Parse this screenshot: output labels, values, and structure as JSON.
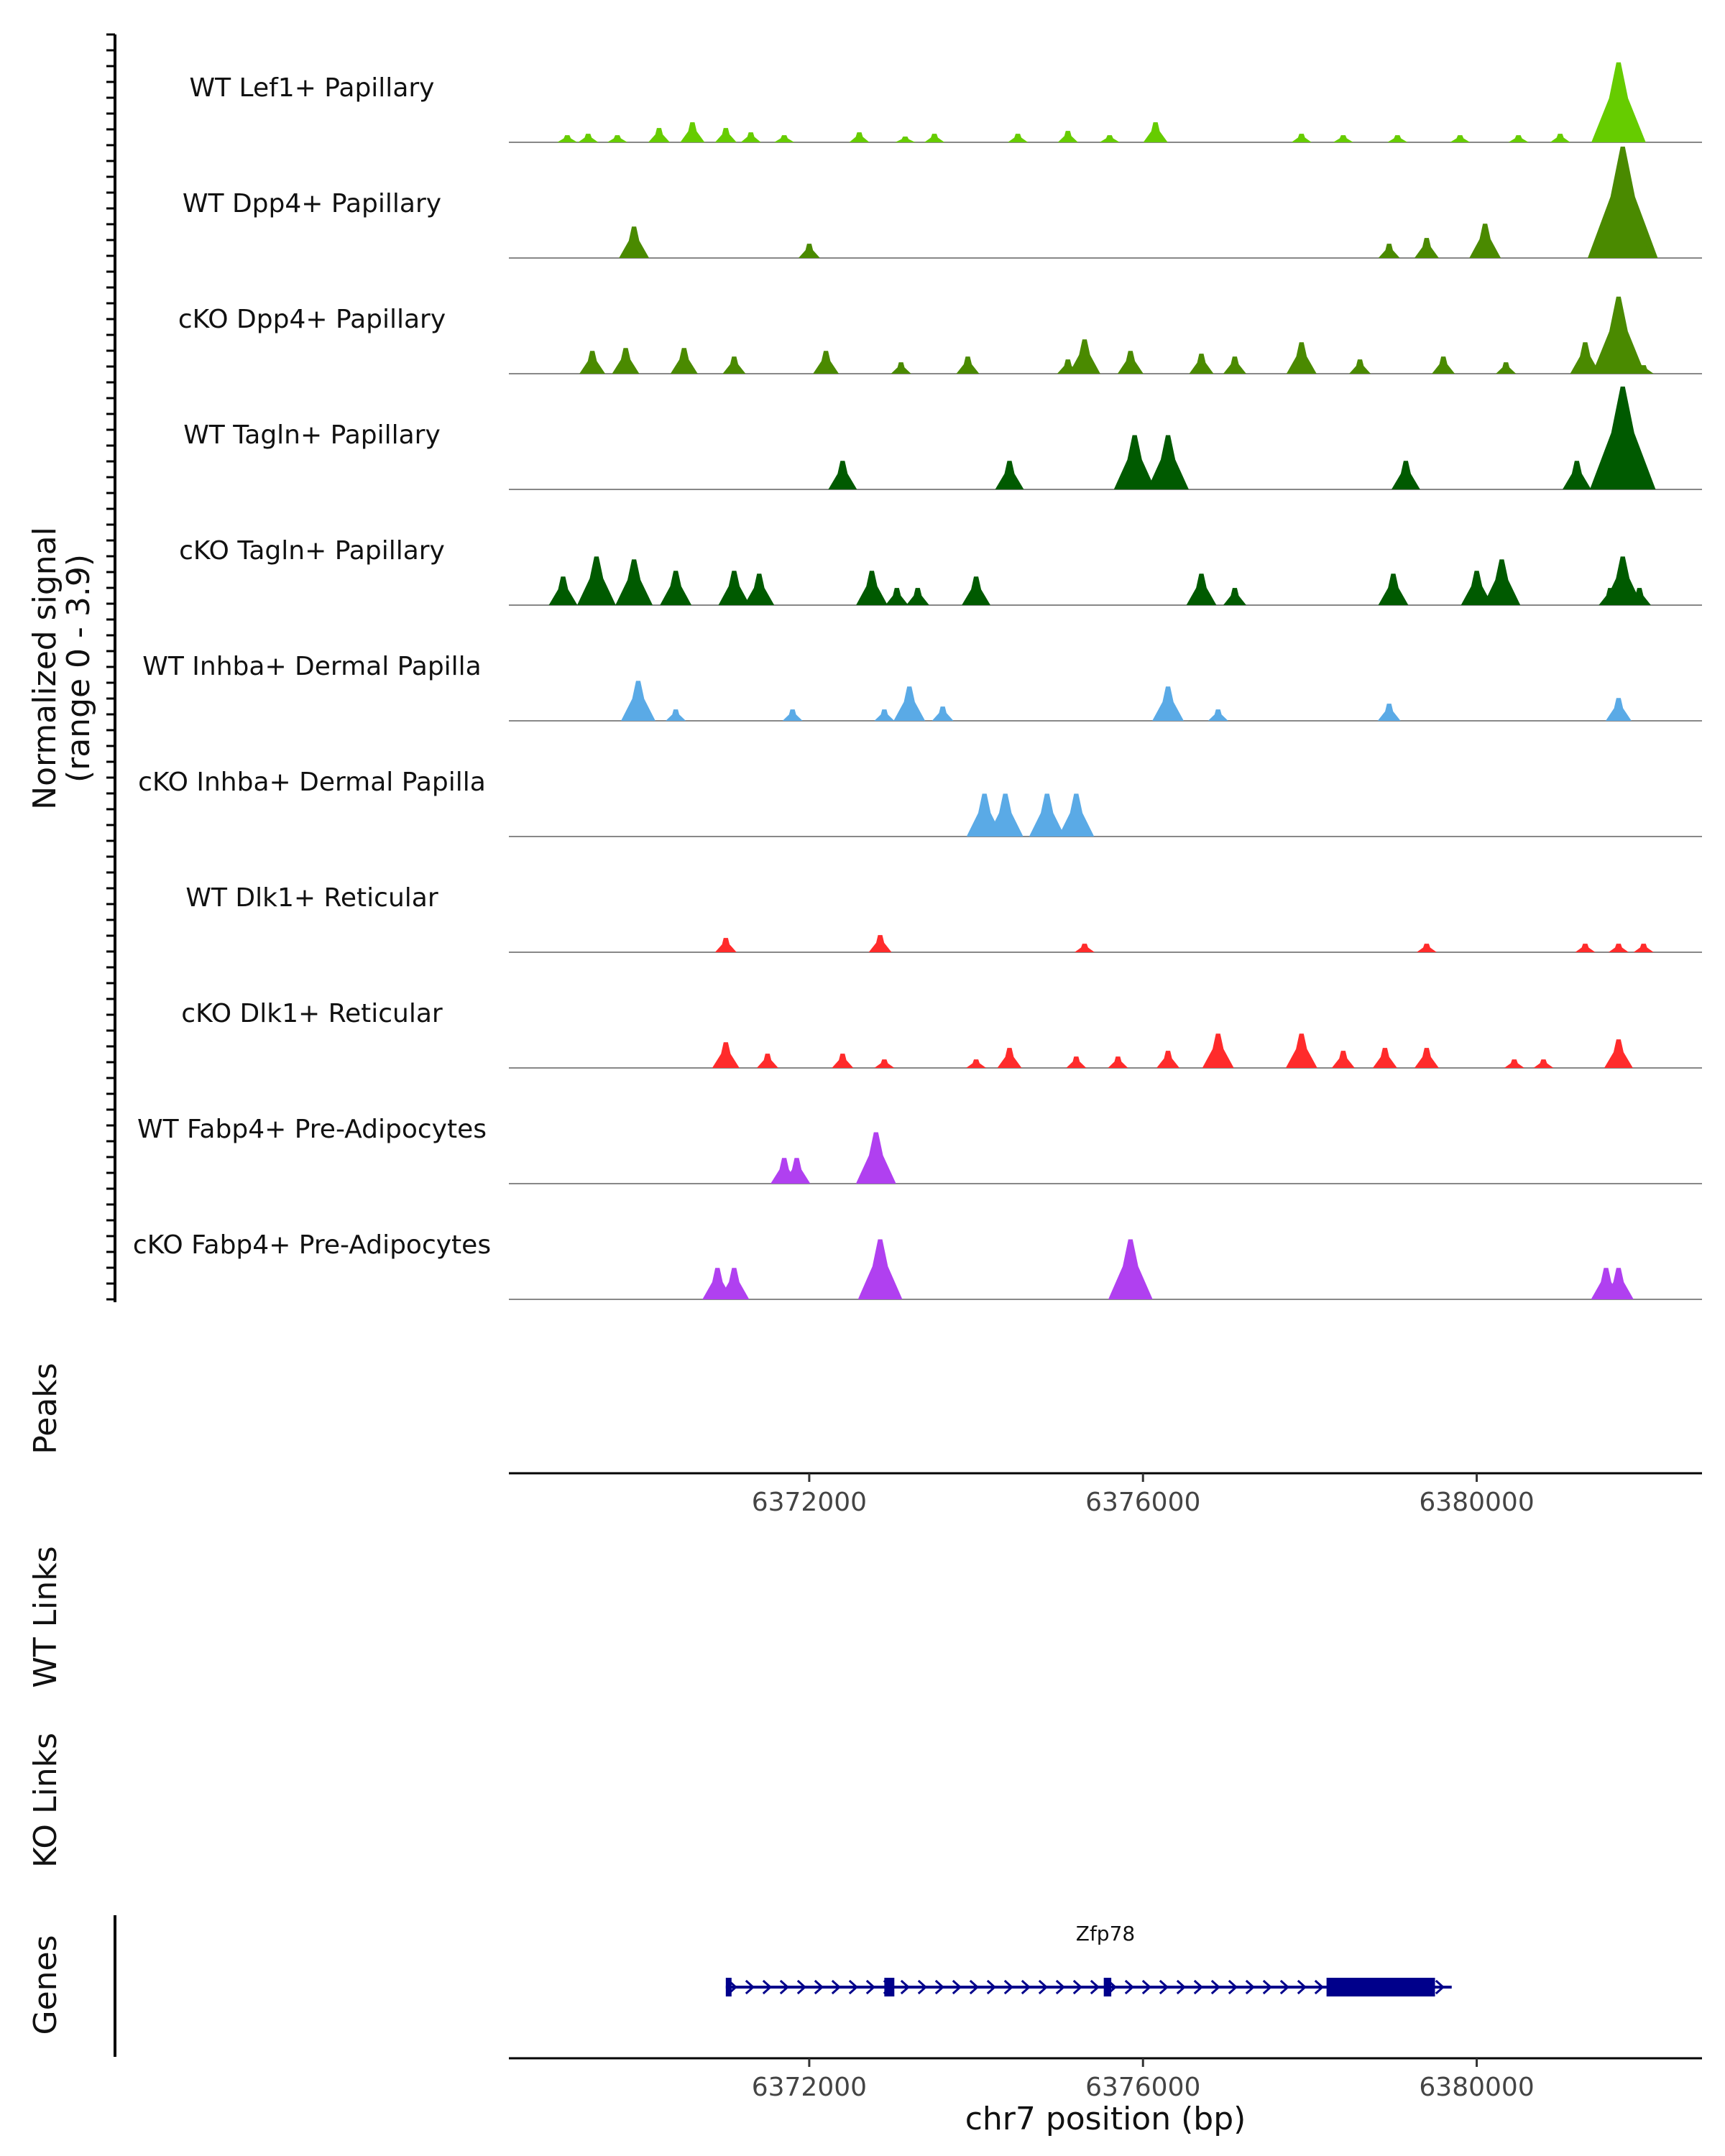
{
  "chart_data": {
    "type": "area",
    "chromosome": "chr7",
    "xlim": [
      6368400,
      6382700
    ],
    "y_axis_title": "Normalized signal",
    "y_axis_range_label": "(range 0 - 3.9)",
    "ylim": [
      0,
      3.9
    ],
    "x_axis_title": "chr7 position (bp)",
    "x_ticks": [
      6372000,
      6376000,
      6380000
    ],
    "x_tick_labels": [
      "6372000",
      "6376000",
      "6380000"
    ],
    "track_labels": {
      "peaks": "Peaks",
      "wt_links": "WT Links",
      "ko_links": "KO Links",
      "genes": "Genes"
    },
    "colors": {
      "lef1": "#66cc00",
      "dpp4": "#4a8a00",
      "tagln": "#005a00",
      "inhba": "#5aaae6",
      "dlk1": "#ff2b2b",
      "fabp4": "#b040f0",
      "gene": "#00008b"
    },
    "tracks": [
      {
        "name": "WT Lef1+ Papillary",
        "color": "#66cc00",
        "peaks": [
          [
            6369100,
            0.25
          ],
          [
            6369350,
            0.3
          ],
          [
            6369700,
            0.25
          ],
          [
            6370200,
            0.5
          ],
          [
            6370600,
            0.7
          ],
          [
            6371000,
            0.5
          ],
          [
            6371300,
            0.35
          ],
          [
            6371700,
            0.25
          ],
          [
            6372600,
            0.35
          ],
          [
            6373150,
            0.2
          ],
          [
            6373500,
            0.3
          ],
          [
            6374500,
            0.3
          ],
          [
            6375100,
            0.4
          ],
          [
            6375600,
            0.25
          ],
          [
            6376150,
            0.7
          ],
          [
            6377900,
            0.3
          ],
          [
            6378400,
            0.25
          ],
          [
            6379050,
            0.25
          ],
          [
            6379800,
            0.25
          ],
          [
            6380500,
            0.25
          ],
          [
            6381000,
            0.3
          ],
          [
            6381700,
            2.8
          ],
          [
            6381900,
            0.3
          ]
        ]
      },
      {
        "name": "WT Dpp4+ Papillary",
        "color": "#4a8a00",
        "peaks": [
          [
            6369900,
            1.1
          ],
          [
            6372000,
            0.5
          ],
          [
            6378950,
            0.5
          ],
          [
            6379400,
            0.7
          ],
          [
            6380100,
            1.2
          ],
          [
            6381600,
            0.5
          ],
          [
            6381750,
            3.9
          ],
          [
            6382000,
            0.5
          ]
        ]
      },
      {
        "name": "cKO Dpp4+ Papillary",
        "color": "#4a8a00",
        "peaks": [
          [
            6369400,
            0.8
          ],
          [
            6369800,
            0.9
          ],
          [
            6370500,
            0.9
          ],
          [
            6371100,
            0.6
          ],
          [
            6372200,
            0.8
          ],
          [
            6373100,
            0.4
          ],
          [
            6373900,
            0.6
          ],
          [
            6375100,
            0.5
          ],
          [
            6375300,
            1.2
          ],
          [
            6375850,
            0.8
          ],
          [
            6376700,
            0.7
          ],
          [
            6377100,
            0.6
          ],
          [
            6377900,
            1.1
          ],
          [
            6378600,
            0.5
          ],
          [
            6379600,
            0.6
          ],
          [
            6380350,
            0.4
          ],
          [
            6381300,
            1.1
          ],
          [
            6381700,
            2.7
          ],
          [
            6382000,
            0.3
          ]
        ]
      },
      {
        "name": "WT Tagln+ Papillary",
        "color": "#005a00",
        "peaks": [
          [
            6372400,
            1.0
          ],
          [
            6374400,
            1.0
          ],
          [
            6375900,
            1.9
          ],
          [
            6376300,
            1.9
          ],
          [
            6379150,
            1.0
          ],
          [
            6381200,
            1.0
          ],
          [
            6381600,
            1.0
          ],
          [
            6381750,
            3.6
          ]
        ]
      },
      {
        "name": "cKO Tagln+ Papillary",
        "color": "#005a00",
        "peaks": [
          [
            6369050,
            1.0
          ],
          [
            6369450,
            1.7
          ],
          [
            6369900,
            1.6
          ],
          [
            6370400,
            1.2
          ],
          [
            6371100,
            1.2
          ],
          [
            6371400,
            1.1
          ],
          [
            6372750,
            1.2
          ],
          [
            6373050,
            0.6
          ],
          [
            6373300,
            0.6
          ],
          [
            6374000,
            1.0
          ],
          [
            6376700,
            1.1
          ],
          [
            6377100,
            0.6
          ],
          [
            6379000,
            1.1
          ],
          [
            6380000,
            1.2
          ],
          [
            6380300,
            1.6
          ],
          [
            6381600,
            0.6
          ],
          [
            6381750,
            1.7
          ],
          [
            6381950,
            0.6
          ]
        ]
      },
      {
        "name": "WT Inhba+ Dermal Papilla",
        "color": "#5aaae6",
        "peaks": [
          [
            6369950,
            1.4
          ],
          [
            6370400,
            0.4
          ],
          [
            6371800,
            0.4
          ],
          [
            6372900,
            0.4
          ],
          [
            6373200,
            1.2
          ],
          [
            6373600,
            0.5
          ],
          [
            6376300,
            1.2
          ],
          [
            6376900,
            0.4
          ],
          [
            6378950,
            0.6
          ],
          [
            6381700,
            0.8
          ]
        ]
      },
      {
        "name": "cKO Inhba+ Dermal Papilla",
        "color": "#5aaae6",
        "peaks": [
          [
            6374100,
            1.5
          ],
          [
            6374350,
            1.5
          ],
          [
            6374850,
            1.5
          ],
          [
            6375200,
            1.5
          ]
        ]
      },
      {
        "name": "WT Dlk1+ Reticular",
        "color": "#ff2b2b",
        "peaks": [
          [
            6371000,
            0.5
          ],
          [
            6372850,
            0.6
          ],
          [
            6375300,
            0.3
          ],
          [
            6379400,
            0.3
          ],
          [
            6381300,
            0.3
          ],
          [
            6381700,
            0.3
          ],
          [
            6382000,
            0.3
          ]
        ]
      },
      {
        "name": "cKO Dlk1+ Reticular",
        "color": "#ff2b2b",
        "peaks": [
          [
            6371000,
            0.9
          ],
          [
            6371500,
            0.5
          ],
          [
            6372400,
            0.5
          ],
          [
            6372900,
            0.3
          ],
          [
            6374000,
            0.3
          ],
          [
            6374400,
            0.7
          ],
          [
            6375200,
            0.4
          ],
          [
            6375700,
            0.4
          ],
          [
            6376300,
            0.6
          ],
          [
            6376900,
            1.2
          ],
          [
            6377900,
            1.2
          ],
          [
            6378400,
            0.6
          ],
          [
            6378900,
            0.7
          ],
          [
            6379400,
            0.7
          ],
          [
            6380450,
            0.3
          ],
          [
            6380800,
            0.3
          ],
          [
            6381700,
            1.0
          ]
        ]
      },
      {
        "name": "WT Fabp4+ Pre-Adipocytes",
        "color": "#b040f0",
        "peaks": [
          [
            6371700,
            0.9
          ],
          [
            6371850,
            0.9
          ],
          [
            6372800,
            1.8
          ]
        ]
      },
      {
        "name": "cKO Fabp4+ Pre-Adipocytes",
        "color": "#b040f0",
        "peaks": [
          [
            6370900,
            1.1
          ],
          [
            6371100,
            1.1
          ],
          [
            6372850,
            2.1
          ],
          [
            6375850,
            2.1
          ],
          [
            6381550,
            1.1
          ],
          [
            6381700,
            1.1
          ]
        ]
      }
    ],
    "gene": {
      "name": "Zfp78",
      "strand": "+",
      "start": 6371000,
      "end": 6379700,
      "exons": [
        [
          6371000,
          6371050
        ],
        [
          6372900,
          6373020
        ],
        [
          6375530,
          6375620
        ],
        [
          6378200,
          6379500
        ]
      ]
    }
  }
}
